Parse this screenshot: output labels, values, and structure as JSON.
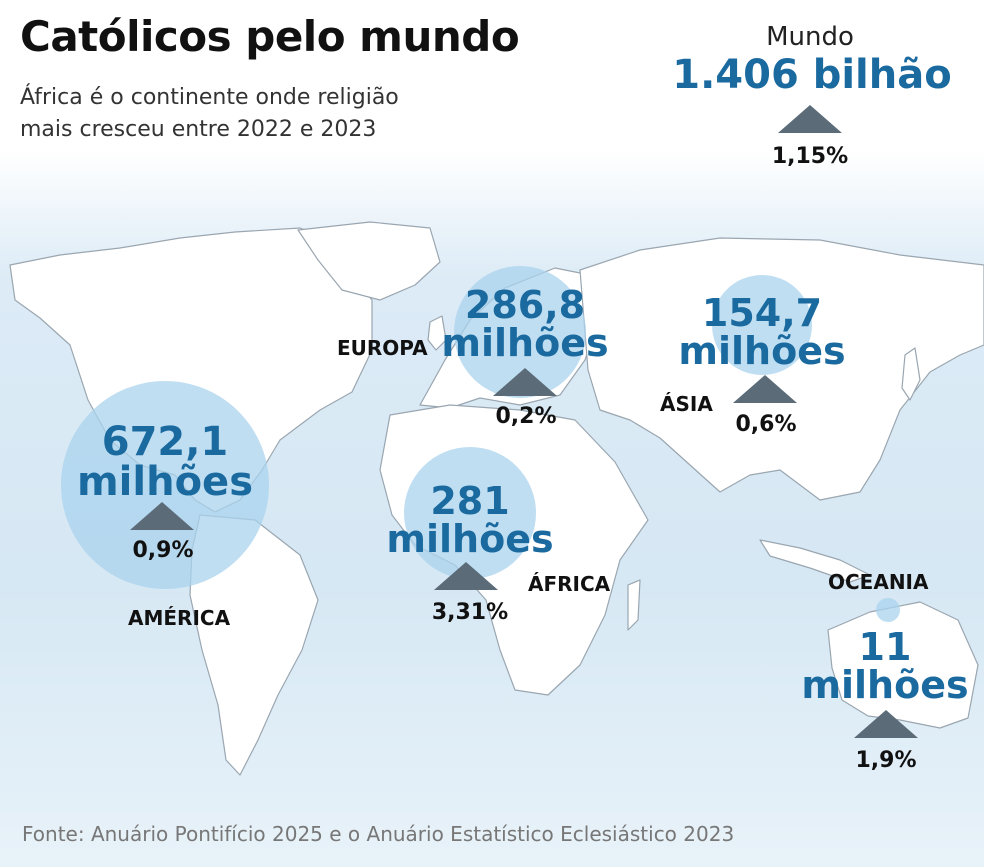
{
  "title": "Católicos pelo mundo",
  "subtitle": "África é o continente onde religião mais cresceu entre 2022 e 2023",
  "world": {
    "label": "Mundo",
    "value": "1.406 bilhão",
    "growth": "1,15%"
  },
  "regions": {
    "america": {
      "name": "AMÉRICA",
      "value_line1": "672,1",
      "value_line2": "milhões",
      "growth": "0,9%"
    },
    "europa": {
      "name": "EUROPA",
      "value_line1": "286,8",
      "value_line2": "milhões",
      "growth": "0,2%"
    },
    "asia": {
      "name": "ÁSIA",
      "value_line1": "154,7",
      "value_line2": "milhões",
      "growth": "0,6%"
    },
    "africa": {
      "name": "ÁFRICA",
      "value_line1": "281",
      "value_line2": "milhões",
      "growth": "3,31%"
    },
    "oceania": {
      "name": "OCEANIA",
      "value_line1": "11",
      "value_line2": "milhões",
      "growth": "1,9%"
    }
  },
  "source": "Fonte: Anuário Pontifício 2025 e o Anuário Estatístico Eclesiástico 2023",
  "colors": {
    "accent": "#1a6aa0",
    "bubble": "#a9d3ee",
    "arrow": "#5b6b78",
    "land": "#ffffff",
    "sea": "#d6e8f4"
  }
}
